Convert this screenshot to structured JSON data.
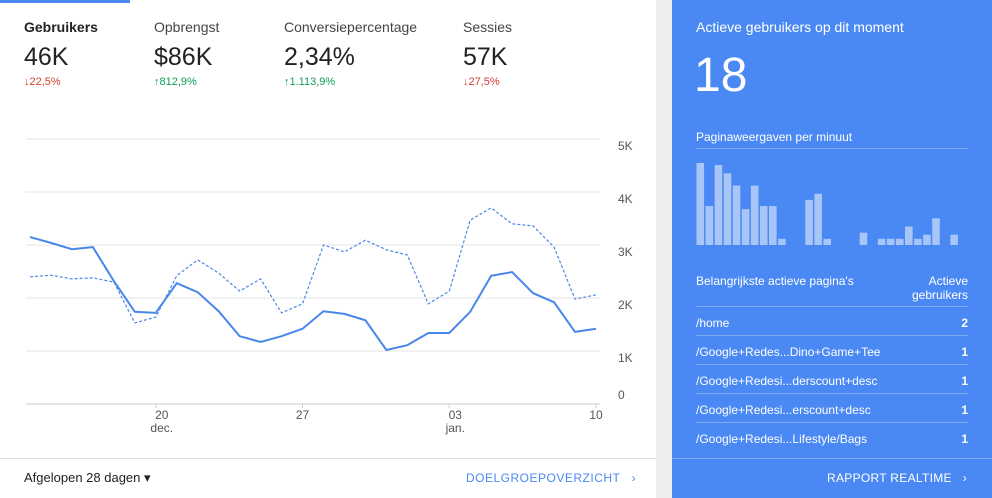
{
  "metrics": [
    {
      "label": "Gebruikers",
      "value": "46K",
      "change": "↓22,5%",
      "trend": "down"
    },
    {
      "label": "Opbrengst",
      "value": "$86K",
      "change": "↑812,9%",
      "trend": "up"
    },
    {
      "label": "Conversiepercentage",
      "value": "2,34%",
      "change": "↑1.113,9%",
      "trend": "up"
    },
    {
      "label": "Sessies",
      "value": "57K",
      "change": "↓27,5%",
      "trend": "down"
    }
  ],
  "chart": {
    "type": "line",
    "categories": [
      null,
      null,
      null,
      null,
      null,
      null,
      "20\ndec.",
      null,
      null,
      null,
      null,
      null,
      null,
      "27",
      null,
      null,
      null,
      null,
      null,
      null,
      "03\njan.",
      null,
      null,
      null,
      null,
      null,
      null,
      "10"
    ],
    "series": [
      {
        "color": "#4a87ea",
        "dash": false,
        "values": [
          3150,
          3040,
          2920,
          2960,
          2320,
          1740,
          1720,
          2280,
          2110,
          1750,
          1280,
          1170,
          1280,
          1420,
          1750,
          1700,
          1580,
          1020,
          1110,
          1340,
          1340,
          1740,
          2420,
          2490,
          2090,
          1920,
          1360,
          1420
        ]
      },
      {
        "color": "#4a87ea",
        "dash": true,
        "values": [
          2400,
          2430,
          2360,
          2380,
          2300,
          1530,
          1640,
          2420,
          2720,
          2470,
          2130,
          2360,
          1720,
          1890,
          3000,
          2870,
          3090,
          2910,
          2810,
          1890,
          2130,
          3470,
          3700,
          3400,
          3360,
          2960,
          1980,
          2060
        ]
      }
    ],
    "ylim": [
      0,
      5000
    ],
    "yticks": [
      0,
      {
        "value": 1000,
        "label": "1K"
      },
      {
        "value": 2000,
        "label": "2K"
      },
      {
        "value": 3000,
        "label": "3K"
      },
      {
        "value": 4000,
        "label": "4K"
      },
      {
        "value": 5000,
        "label": "5K"
      }
    ],
    "grid": true
  },
  "footer": {
    "range": "Afgelopen 28 dagen",
    "link": "DOELGROEPOVERZICHT"
  },
  "realtime": {
    "title": "Actieve gebruikers op dit moment",
    "count": "18",
    "bars_title": "Paginaweergaven per minuut",
    "bars": {
      "type": "bar",
      "color": "#a8c5f7",
      "values": [
        80,
        38,
        78,
        70,
        58,
        35,
        58,
        38,
        38,
        6,
        0,
        0,
        44,
        50,
        6,
        0,
        0,
        0,
        12,
        0,
        6,
        6,
        6,
        18,
        6,
        10,
        26,
        0,
        10,
        0
      ]
    },
    "table_header": [
      "Belangrijkste actieve pagina's",
      "Actieve\ngebruikers"
    ],
    "rows": [
      [
        "/home",
        "2"
      ],
      [
        "/Google+Redes...Dino+Game+Tee",
        "1"
      ],
      [
        "/Google+Redesi...derscount+desc",
        "1"
      ],
      [
        "/Google+Redesi...erscount+desc",
        "1"
      ],
      [
        "/Google+Redesi...Lifestyle/Bags",
        "1"
      ]
    ],
    "link": "RAPPORT REALTIME"
  }
}
